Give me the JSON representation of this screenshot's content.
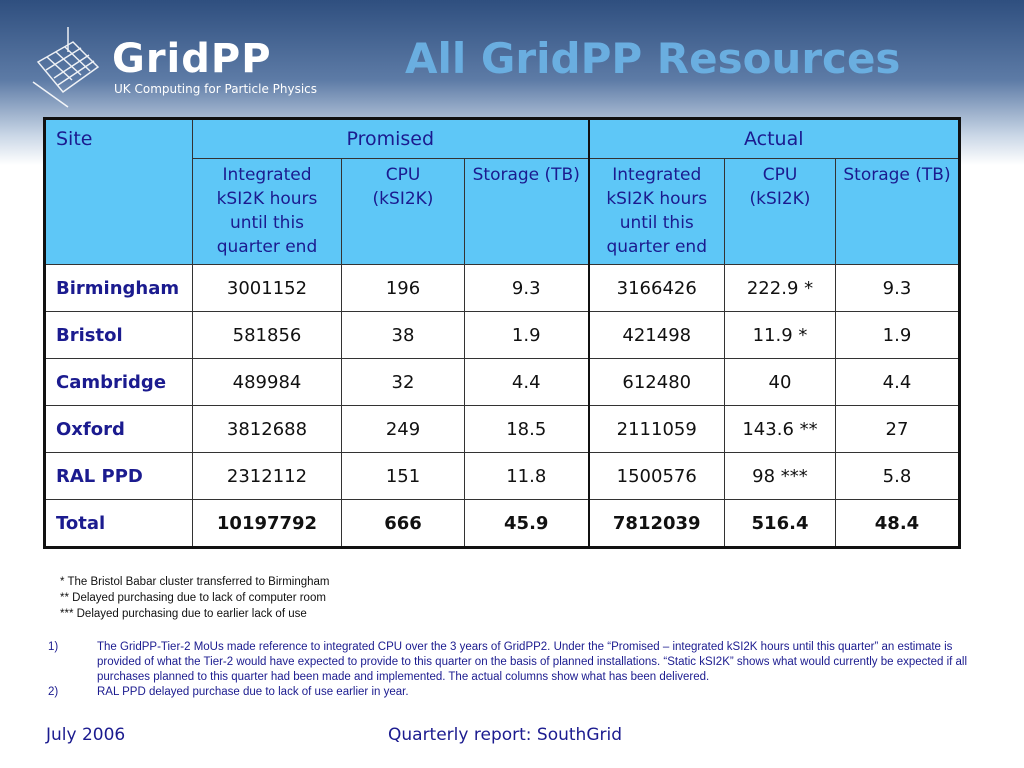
{
  "header": {
    "logo": "GridPP",
    "logo_tagline": "UK Computing for Particle Physics",
    "title": "All GridPP Resources"
  },
  "table": {
    "group_headers": [
      "Site",
      "Promised",
      "Actual"
    ],
    "sub_headers": [
      "Integrated kSI2K hours until this quarter end",
      "CPU (kSI2K)",
      "Storage (TB)",
      "Integrated kSI2K hours until this quarter end",
      "CPU (kSI2K)",
      "Storage (TB)"
    ],
    "rows": [
      [
        "Birmingham",
        "3001152",
        "196",
        "9.3",
        "3166426",
        "222.9 *",
        "9.3"
      ],
      [
        "Bristol",
        "581856",
        "38",
        "1.9",
        "421498",
        "11.9 *",
        "1.9"
      ],
      [
        "Cambridge",
        "489984",
        "32",
        "4.4",
        "612480",
        "40",
        "4.4"
      ],
      [
        "Oxford",
        "3812688",
        "249",
        "18.5",
        "2111059",
        "143.6 **",
        "27"
      ],
      [
        "RAL PPD",
        "2312112",
        "151",
        "11.8",
        "1500576",
        "98 ***",
        "5.8"
      ],
      [
        "Total",
        "10197792",
        "666",
        "45.9",
        "7812039",
        "516.4",
        "48.4"
      ]
    ]
  },
  "footnotes": [
    "*  The Bristol Babar cluster transferred to Birmingham",
    "** Delayed purchasing due to lack of computer room",
    "*** Delayed purchasing due to earlier lack of use"
  ],
  "notes": [
    {
      "marker": "1)",
      "text": "The GridPP-Tier-2 MoUs made reference to integrated CPU over the 3 years of GridPP2. Under the “Promised – integrated kSI2K hours until this quarter” an estimate is provided of what the Tier-2 would have expected to provide to this quarter on the basis of planned installations. “Static kSI2K” shows what would currently be expected if all purchases planned to this quarter had been made and implemented.   The actual columns show what has been delivered."
    },
    {
      "marker": "2)",
      "text": "RAL PPD delayed purchase due to lack of use earlier in year."
    }
  ],
  "footer": {
    "date": "July 2006",
    "report": "Quarterly report: SouthGrid"
  }
}
